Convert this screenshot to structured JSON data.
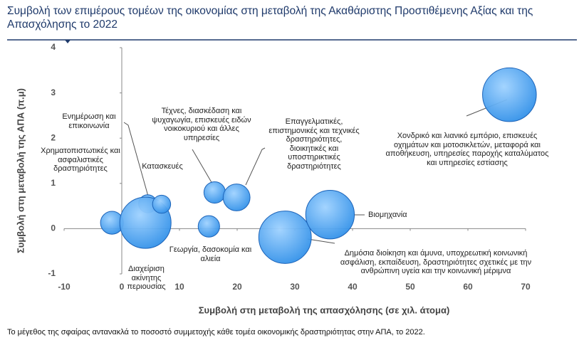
{
  "chart_data": {
    "type": "bubble",
    "title": "Συμβολή των επιμέρους τομέων της οικονομίας στη μεταβολή της Ακαθάριστης Προστιθέμενης Αξίας και της Απασχόλησης το 2022",
    "xlabel": "Συμβολή στη μεταβολή της απασχόλησης (σε χιλ. άτομα)",
    "ylabel": "Συμβολή στη μεταβολή της ΑΠΑ (π.μ)",
    "note": "Το μέγεθος της σφαίρας αντανακλά το ποσοστό συμμετοχής κάθε τομέα οικονομικής δραστηριότητας στην ΑΠΑ, το 2022.",
    "xlim": [
      -10,
      70
    ],
    "xticks": [
      -10,
      0,
      10,
      20,
      30,
      40,
      50,
      60,
      70
    ],
    "ylim": [
      -1,
      4
    ],
    "yticks": [
      -1,
      0,
      1,
      2,
      3,
      4
    ],
    "color": "#2f8fe8",
    "points": [
      {
        "name": "Χρηματοπιστωτικές και ασφαλιστικές δραστηριότητες",
        "x": -1.7,
        "y": 0.13,
        "size": 4
      },
      {
        "name": "Ενημέρωση και επικοινωνία",
        "x": 4.5,
        "y": 0.55,
        "size": 2.5
      },
      {
        "name": "Διαχείριση ακίνητης περιουσίας",
        "x": 4.1,
        "y": 0.13,
        "size": 20
      },
      {
        "name": "Κατασκευές",
        "x": 6.9,
        "y": 0.54,
        "size": 2.5
      },
      {
        "name": "Τέχνες, διασκέδαση και ψυχαγωγία, επισκευές ειδών νοικοκυριού και άλλες υπηρεσίες",
        "x": 16.1,
        "y": 0.8,
        "size": 3.5
      },
      {
        "name": "Επαγγελματικές, επιστημονικές και τεχνικές δραστηριότητες, διοικητικές και υποστηρικτικές δραστηριότητες",
        "x": 19.9,
        "y": 0.69,
        "size": 5.5
      },
      {
        "name": "Γεωργία, δασοκομία και αλιεία",
        "x": 15.1,
        "y": 0.05,
        "size": 3.5
      },
      {
        "name": "Δημόσια διοίκηση και άμυνα, υποχρεωτική κοινωνική ασφάλιση, εκπαίδευση, δραστηριότητες σχετικές με την ανθρώπινη υγεία και την κοινωνική μέριμνα",
        "x": 28.3,
        "y": -0.19,
        "size": 21
      },
      {
        "name": "Βιομηχανία",
        "x": 36.1,
        "y": 0.31,
        "size": 18
      },
      {
        "name": "Χονδρικό και λιανικό εμπόριο, επισκευές οχημάτων και μοτοσικλετών, μεταφορά και αποθήκευση, υπηρεσίες παροχής καταλύματος και υπηρεσίες εστίασης",
        "x": 67.2,
        "y": 2.96,
        "size": 22
      }
    ]
  }
}
